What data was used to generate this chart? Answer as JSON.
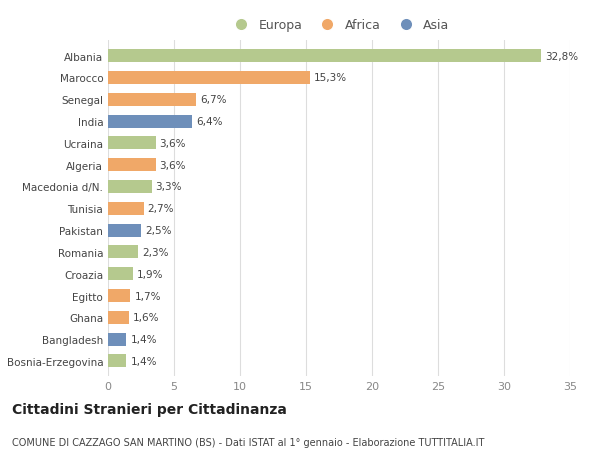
{
  "countries": [
    "Albania",
    "Marocco",
    "Senegal",
    "India",
    "Ucraina",
    "Algeria",
    "Macedonia d/N.",
    "Tunisia",
    "Pakistan",
    "Romania",
    "Croazia",
    "Egitto",
    "Ghana",
    "Bangladesh",
    "Bosnia-Erzegovina"
  ],
  "values": [
    32.8,
    15.3,
    6.7,
    6.4,
    3.6,
    3.6,
    3.3,
    2.7,
    2.5,
    2.3,
    1.9,
    1.7,
    1.6,
    1.4,
    1.4
  ],
  "labels": [
    "32,8%",
    "15,3%",
    "6,7%",
    "6,4%",
    "3,6%",
    "3,6%",
    "3,3%",
    "2,7%",
    "2,5%",
    "2,3%",
    "1,9%",
    "1,7%",
    "1,6%",
    "1,4%",
    "1,4%"
  ],
  "continent": [
    "Europa",
    "Africa",
    "Africa",
    "Asia",
    "Europa",
    "Africa",
    "Europa",
    "Africa",
    "Asia",
    "Europa",
    "Europa",
    "Africa",
    "Africa",
    "Asia",
    "Europa"
  ],
  "colors": {
    "Europa": "#b5c98e",
    "Africa": "#f0a868",
    "Asia": "#6e8fba"
  },
  "legend_entries": [
    "Europa",
    "Africa",
    "Asia"
  ],
  "xlim": [
    0,
    35
  ],
  "xticks": [
    0,
    5,
    10,
    15,
    20,
    25,
    30,
    35
  ],
  "title": "Cittadini Stranieri per Cittadinanza",
  "subtitle": "COMUNE DI CAZZAGO SAN MARTINO (BS) - Dati ISTAT al 1° gennaio - Elaborazione TUTTITALIA.IT",
  "bg_color": "#ffffff",
  "plot_bg_color": "#ffffff",
  "grid_color": "#dddddd",
  "bar_height": 0.6,
  "label_fontsize": 7.5,
  "ytick_fontsize": 7.5,
  "xtick_fontsize": 8,
  "title_fontsize": 10,
  "subtitle_fontsize": 7
}
